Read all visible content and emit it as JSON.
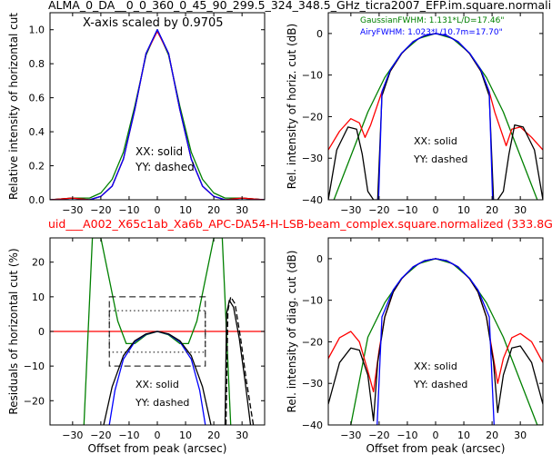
{
  "figure": {
    "title_top": "ALMA_0_DA__0_0_360_0_45_90_299.5_324_348.5_GHz_ticra2007_EFP.im.square.normali",
    "title_mid": "uid___A002_X65c1ab_Xa6b_APC-DA54-H-LSB-beam_complex.square.normalized (333.8G",
    "title_mid_color": "#ff0000",
    "colors": {
      "red": "#ff0000",
      "blue": "#0000ff",
      "green": "#008000",
      "black": "#000000"
    }
  },
  "chart_data": [
    {
      "id": "tl",
      "type": "line",
      "ylabel": "Relative intensity of horizontal cut",
      "xlabel": "",
      "xlim": [
        -38,
        38
      ],
      "ylim": [
        0,
        1.1
      ],
      "xticks": [
        -30,
        -20,
        -10,
        0,
        10,
        20,
        30
      ],
      "yticks": [
        0.0,
        0.2,
        0.4,
        0.6,
        0.8,
        1.0
      ],
      "ytick_labels": [
        "0.0",
        "0.2",
        "0.4",
        "0.6",
        "0.8",
        "1.0"
      ],
      "annotations": [
        "X-axis scaled by 0.9705",
        "XX: solid",
        "YY: dashed"
      ],
      "series": [
        {
          "color": "green",
          "style": "solid",
          "x": [
            -38,
            -30,
            -24,
            -20,
            -16,
            -12,
            -8,
            -4,
            0,
            4,
            8,
            12,
            16,
            20,
            24,
            30,
            38
          ],
          "y": [
            0.0,
            0.01,
            0.01,
            0.04,
            0.12,
            0.28,
            0.55,
            0.85,
            1.0,
            0.85,
            0.55,
            0.28,
            0.12,
            0.04,
            0.01,
            0.01,
            0.0
          ]
        },
        {
          "color": "black",
          "style": "solid",
          "x": [
            -38,
            -30,
            -24,
            -20,
            -16,
            -12,
            -8,
            -4,
            0,
            4,
            8,
            12,
            16,
            20,
            24,
            30,
            38
          ],
          "y": [
            0.0,
            0.01,
            0.0,
            0.02,
            0.08,
            0.24,
            0.53,
            0.86,
            1.0,
            0.86,
            0.53,
            0.24,
            0.08,
            0.02,
            0.0,
            0.01,
            0.0
          ]
        },
        {
          "color": "red",
          "style": "solid",
          "x": [
            -38,
            -30,
            -24,
            -20,
            -16,
            -12,
            -8,
            -4,
            0,
            4,
            8,
            12,
            16,
            20,
            24,
            30,
            38
          ],
          "y": [
            0.0,
            0.01,
            0.0,
            0.02,
            0.08,
            0.24,
            0.53,
            0.86,
            0.99,
            0.86,
            0.53,
            0.24,
            0.08,
            0.02,
            0.0,
            0.01,
            0.0
          ]
        },
        {
          "color": "blue",
          "style": "solid",
          "x": [
            -38,
            -24,
            -20,
            -16,
            -12,
            -8,
            -4,
            0,
            4,
            8,
            12,
            16,
            20,
            24,
            38
          ],
          "y": [
            0.0,
            0.0,
            0.02,
            0.08,
            0.24,
            0.53,
            0.86,
            1.0,
            0.86,
            0.53,
            0.24,
            0.08,
            0.02,
            0.0,
            0.0
          ]
        }
      ]
    },
    {
      "id": "tr",
      "type": "line",
      "ylabel": "Rel. intensity of horiz. cut (dB)",
      "xlabel": "",
      "xlim": [
        -38,
        38
      ],
      "ylim": [
        -40,
        5
      ],
      "xticks": [
        -30,
        -20,
        -10,
        0,
        10,
        20,
        30
      ],
      "yticks": [
        0,
        -10,
        -20,
        -30,
        -40
      ],
      "ytick_labels": [
        "0",
        "−10",
        "−20",
        "−30",
        "−40"
      ],
      "annotations": [
        "GaussianFWHM: 1.131*L/D=17.46\"",
        "AiryFWHM: 1.023*L/10.7m=17.70\"",
        "XX: solid",
        "YY: dashed"
      ],
      "series": [
        {
          "color": "green",
          "style": "solid",
          "x": [
            -36,
            -30,
            -24,
            -18,
            -12,
            -6,
            0,
            6,
            12,
            18,
            24,
            30,
            36
          ],
          "y": [
            -40,
            -29.5,
            -18.9,
            -10.6,
            -4.7,
            -1.2,
            0,
            -1.2,
            -4.7,
            -10.6,
            -18.9,
            -29.5,
            -40
          ]
        },
        {
          "color": "red",
          "style": "solid",
          "x": [
            -38,
            -34,
            -30,
            -27,
            -25,
            -23,
            -21,
            -19,
            -16,
            -12,
            -8,
            -4,
            0,
            4,
            8,
            12,
            16,
            19,
            21,
            23,
            25,
            27,
            30,
            34,
            38
          ],
          "y": [
            -28,
            -23.5,
            -20.5,
            -21.5,
            -25,
            -22,
            -18,
            -14,
            -9,
            -4.8,
            -2,
            -0.5,
            0,
            -0.5,
            -2,
            -4.8,
            -9,
            -14,
            -19,
            -23,
            -27,
            -23,
            -22.5,
            -25,
            -28
          ]
        },
        {
          "color": "black",
          "style": "solid",
          "x": [
            -38,
            -35,
            -31,
            -28,
            -26,
            -24,
            -22,
            -20.5,
            -19,
            -16,
            -12,
            -8,
            -4,
            0,
            4,
            8,
            12,
            16,
            19,
            20.5,
            22,
            24,
            26,
            28,
            31,
            35,
            38
          ],
          "y": [
            -40,
            -28,
            -22.5,
            -23,
            -29,
            -38,
            -40,
            -40,
            -15,
            -9,
            -4.8,
            -2,
            -0.5,
            0,
            -0.5,
            -2,
            -4.8,
            -9,
            -15,
            -40,
            -40,
            -38,
            -29,
            -22,
            -22.5,
            -28,
            -40
          ]
        },
        {
          "color": "blue",
          "style": "solid",
          "x": [
            -20.2,
            -19,
            -16,
            -12,
            -8,
            -4,
            0,
            4,
            8,
            12,
            16,
            19,
            20.2
          ],
          "y": [
            -40,
            -14,
            -8.7,
            -4.7,
            -2,
            -0.5,
            0,
            -0.5,
            -2,
            -4.7,
            -8.7,
            -14,
            -40
          ]
        }
      ]
    },
    {
      "id": "bl",
      "type": "line",
      "ylabel": "Residuals of horizontal cut (%)",
      "xlabel": "Offset from peak (arcsec)",
      "xlim": [
        -38,
        38
      ],
      "ylim": [
        -27,
        27
      ],
      "xticks": [
        -30,
        -20,
        -10,
        0,
        10,
        20,
        30
      ],
      "yticks": [
        20,
        10,
        0,
        -10,
        -20
      ],
      "ytick_labels": [
        "20",
        "10",
        "0",
        "−10",
        "−20"
      ],
      "annotations": [
        "XX: solid",
        "YY: dashed"
      ],
      "series": [
        {
          "color": "red",
          "style": "solid",
          "x": [
            -38,
            38
          ],
          "y": [
            0,
            0
          ]
        },
        {
          "color": "green",
          "style": "solid",
          "x": [
            -26,
            -23,
            -20,
            -17,
            -14,
            -11,
            -8,
            -4,
            0,
            4,
            8,
            11,
            14,
            17,
            20,
            23,
            26
          ],
          "y": [
            -27,
            27,
            27,
            15,
            3,
            -3.5,
            -3.5,
            -1,
            0,
            -1,
            -3.5,
            -3.5,
            3,
            15,
            27,
            27,
            -27
          ]
        },
        {
          "color": "blue",
          "style": "solid",
          "x": [
            -17,
            -15,
            -12,
            -8,
            -4,
            0,
            4,
            8,
            12,
            15,
            17
          ],
          "y": [
            -27,
            -17,
            -8,
            -3,
            -0.8,
            0,
            -0.8,
            -3,
            -8,
            -17,
            -27
          ]
        },
        {
          "color": "black",
          "style": "solid",
          "x": [
            -19,
            -16,
            -12,
            -8,
            -4,
            0,
            4,
            8,
            12,
            16,
            19
          ],
          "y": [
            -27,
            -16,
            -7,
            -2.7,
            -0.7,
            0,
            -0.7,
            -2.7,
            -7,
            -16,
            -27
          ]
        },
        {
          "color": "black",
          "style": "solid",
          "x": [
            24,
            24.5,
            25.5,
            27,
            29,
            31,
            33
          ],
          "y": [
            -27,
            5,
            9,
            7,
            -2,
            -14,
            -27
          ]
        },
        {
          "color": "black",
          "style": "dashed",
          "x": [
            24.3,
            25,
            26,
            27.5,
            29.5,
            31.5,
            34
          ],
          "y": [
            -27,
            6,
            10,
            8,
            -2,
            -14,
            -27
          ]
        }
      ],
      "boxes": [
        {
          "style": "dashed",
          "x": [
            -17,
            17
          ],
          "y": [
            -10,
            10
          ]
        },
        {
          "style": "dotted",
          "x": [
            -17,
            17
          ],
          "y": [
            -6,
            6
          ]
        }
      ]
    },
    {
      "id": "br",
      "type": "line",
      "ylabel": "Rel. intensity of diag. cut (dB)",
      "xlabel": "Offset from peak (arcsec)",
      "xlim": [
        -38,
        38
      ],
      "ylim": [
        -40,
        5
      ],
      "xticks": [
        -30,
        -20,
        -10,
        0,
        10,
        20,
        30
      ],
      "yticks": [
        0,
        -10,
        -20,
        -30,
        -40
      ],
      "ytick_labels": [
        "0",
        "−10",
        "−20",
        "−30",
        "−40"
      ],
      "annotations": [
        "XX: solid",
        "YY: dashed"
      ],
      "series": [
        {
          "color": "green",
          "style": "solid",
          "x": [
            -30,
            -24,
            -18,
            -12,
            -6,
            0,
            6,
            12,
            18,
            24,
            30,
            36,
            38
          ],
          "y": [
            -40,
            -18.9,
            -10.6,
            -4.7,
            -1.2,
            0,
            -1.2,
            -4.7,
            -10.6,
            -18.9,
            -29.5,
            -40,
            -40
          ]
        },
        {
          "color": "red",
          "style": "solid",
          "x": [
            -38,
            -34,
            -30,
            -27,
            -24,
            -22,
            -20,
            -18,
            -15,
            -12,
            -8,
            -4,
            0,
            4,
            8,
            12,
            15,
            18,
            20,
            22,
            24,
            27,
            30,
            34,
            38
          ],
          "y": [
            -24,
            -19,
            -17.5,
            -20,
            -27,
            -32,
            -22,
            -14,
            -8,
            -4.8,
            -2,
            -0.5,
            0,
            -0.5,
            -2,
            -4.8,
            -8,
            -14,
            -22,
            -30,
            -24,
            -19,
            -18,
            -20,
            -25
          ]
        },
        {
          "color": "black",
          "style": "solid",
          "x": [
            -38,
            -34,
            -30,
            -27,
            -24,
            -22,
            -20.5,
            -18,
            -15,
            -12,
            -8,
            -4,
            0,
            4,
            8,
            12,
            15,
            18,
            20.5,
            22,
            24,
            27,
            30,
            34,
            38
          ],
          "y": [
            -35,
            -25,
            -21.5,
            -22,
            -28,
            -39,
            -25,
            -14,
            -8,
            -4.8,
            -2,
            -0.5,
            0,
            -0.5,
            -2,
            -4.8,
            -8,
            -14,
            -25,
            -37,
            -28,
            -21.5,
            -21,
            -25,
            -35
          ]
        },
        {
          "color": "blue",
          "style": "solid",
          "x": [
            -20.7,
            -19,
            -15,
            -12,
            -8,
            -4,
            0,
            4,
            8,
            12,
            15,
            19,
            20.7
          ],
          "y": [
            -40,
            -14,
            -7.5,
            -4.7,
            -2,
            -0.5,
            0,
            -0.5,
            -2,
            -4.7,
            -7.5,
            -14,
            -40
          ]
        }
      ]
    }
  ]
}
